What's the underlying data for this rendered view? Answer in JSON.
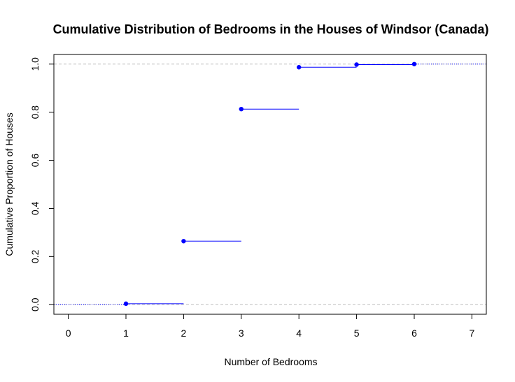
{
  "chart_data": {
    "type": "step",
    "title": "Cumulative Distribution of Bedrooms in the Houses of Windsor (Canada)",
    "xlabel": "Number of Bedrooms",
    "ylabel": "Cumulative Proportion of Houses",
    "xlim": [
      -0.25,
      7.25
    ],
    "ylim": [
      -0.04,
      1.04
    ],
    "x_ticks": [
      "0",
      "1",
      "2",
      "3",
      "4",
      "5",
      "6",
      "7"
    ],
    "y_ticks": [
      "0.0",
      "0.2",
      "0.4",
      "0.6",
      "0.8",
      "1.0"
    ],
    "reference_lines": [
      0,
      1
    ],
    "series": [
      {
        "x": [
          1,
          2,
          3,
          4,
          5,
          6
        ],
        "y": [
          0.004,
          0.264,
          0.813,
          0.987,
          0.998,
          1.0
        ]
      }
    ],
    "colors": {
      "series": "#0000ff",
      "reference": "#bebebe",
      "frame": "#000000"
    }
  }
}
